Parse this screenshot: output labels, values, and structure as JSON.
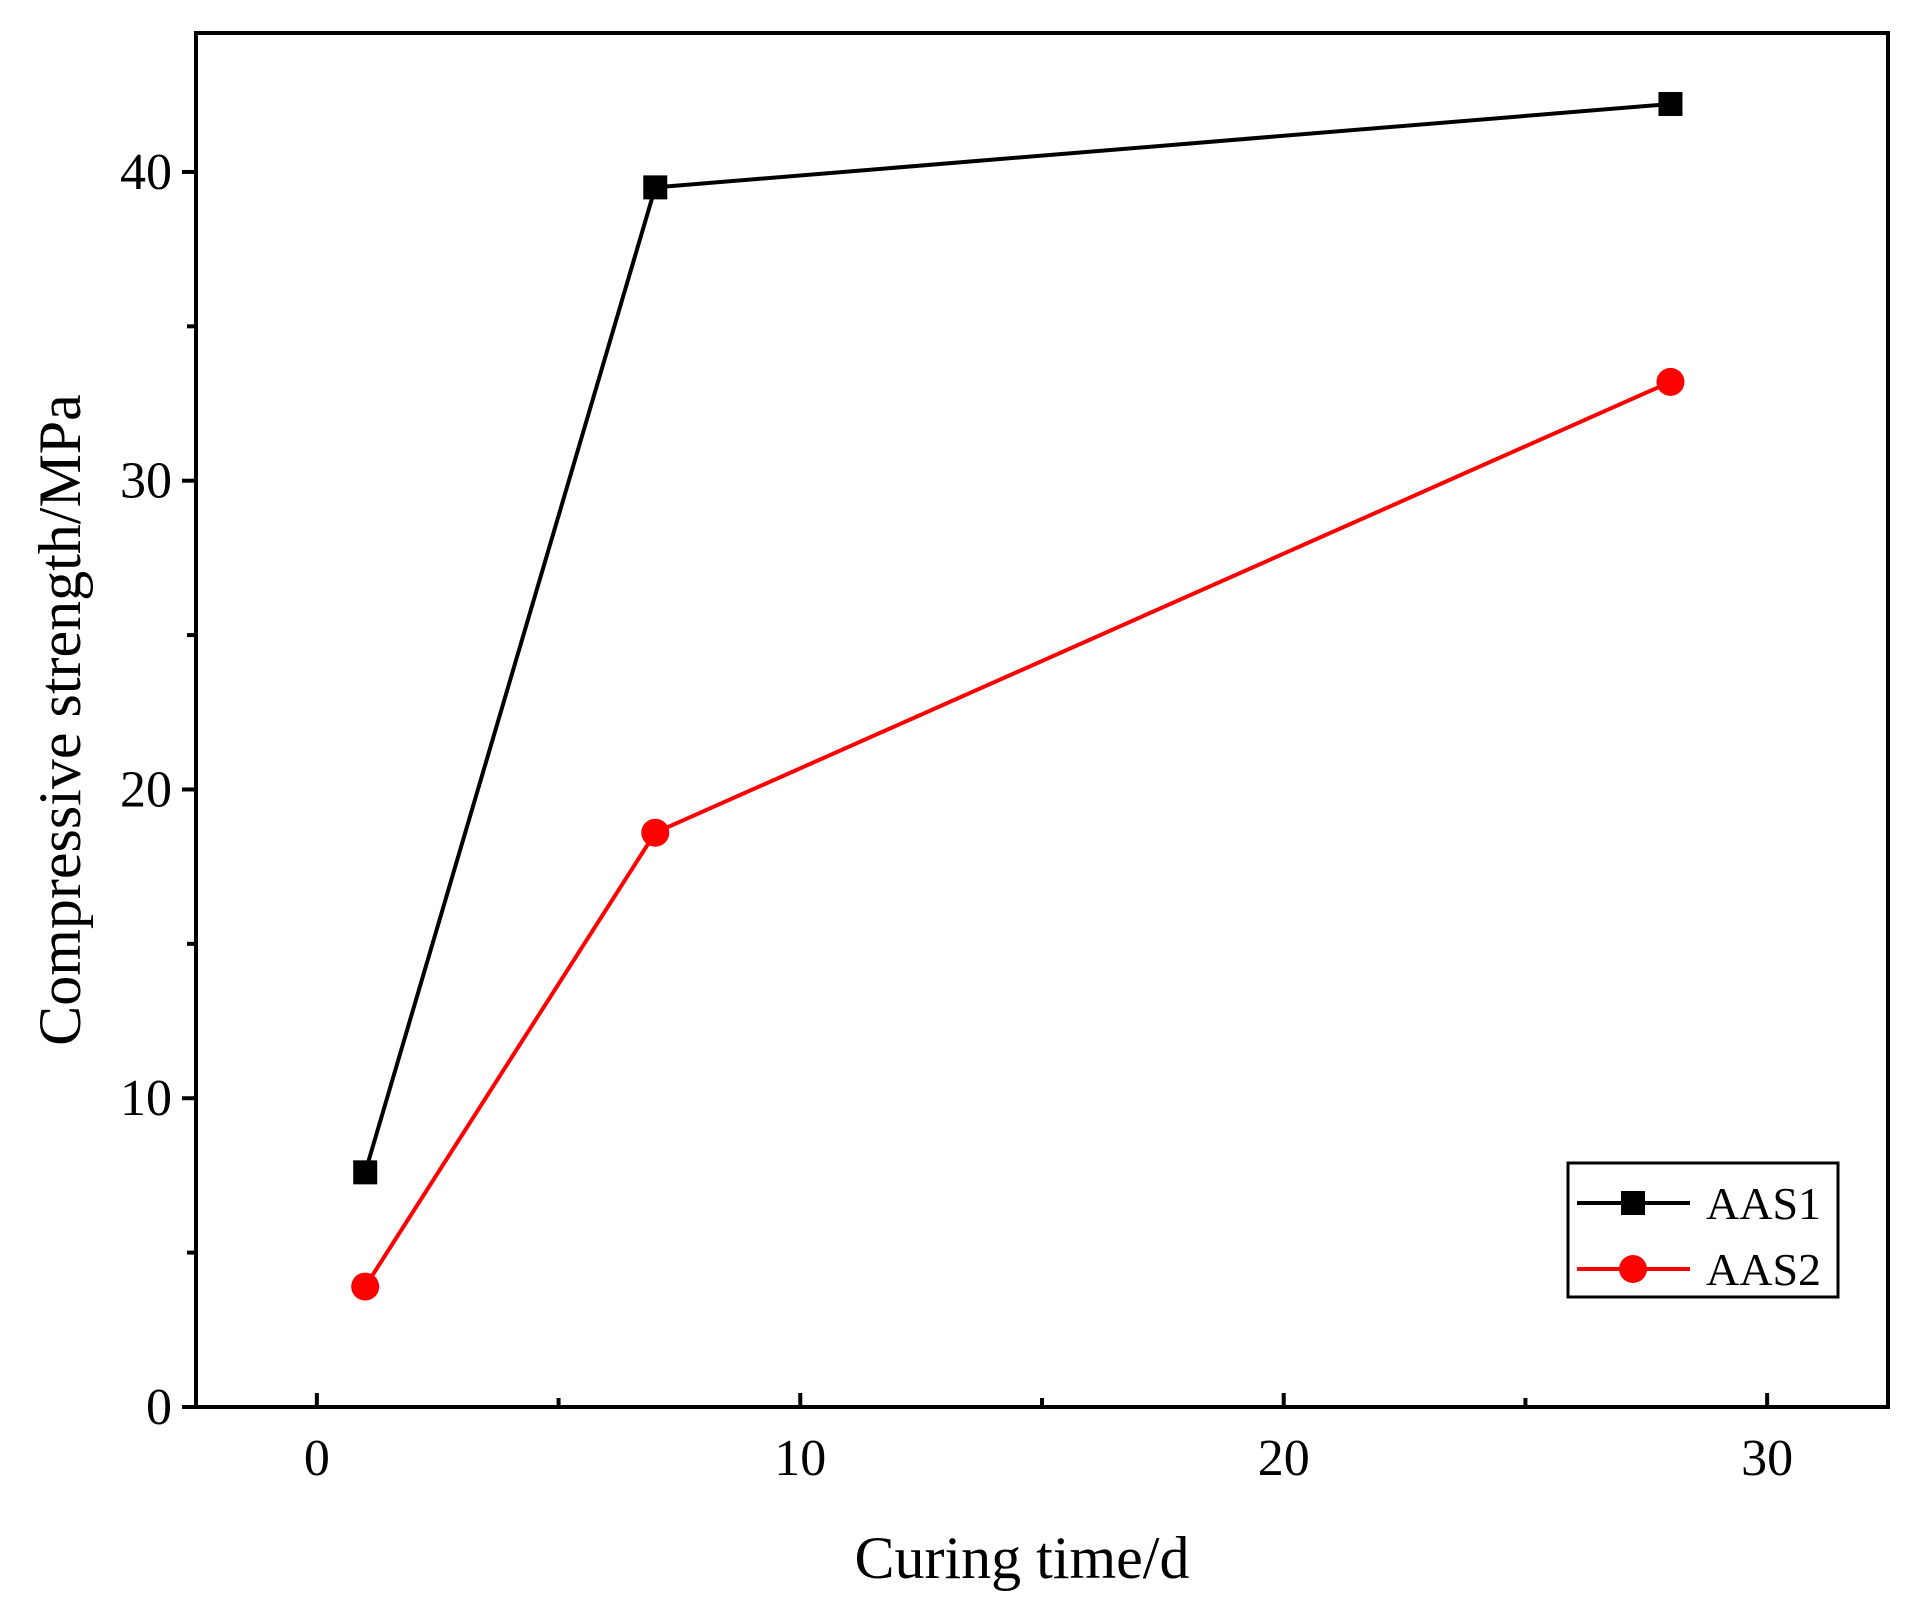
{
  "chart_data": {
    "type": "line",
    "title": "",
    "xlabel": "Curing time/d",
    "ylabel": "Compressive strength/MPa",
    "xlim": [
      -2.5,
      32.5
    ],
    "ylim": [
      0,
      44.5
    ],
    "x_major_ticks": [
      0,
      10,
      20,
      30
    ],
    "x_minor_ticks": [
      5,
      15,
      25
    ],
    "y_major_ticks": [
      0,
      10,
      20,
      30,
      40
    ],
    "y_minor_ticks": [
      5,
      15,
      25,
      35
    ],
    "x_tick_labels": [
      "0",
      "10",
      "20",
      "30"
    ],
    "y_tick_labels": [
      "0",
      "10",
      "20",
      "30",
      "40"
    ],
    "grid": false,
    "legend_position": "bottom-right",
    "series": [
      {
        "name": "AAS1",
        "color": "#000000",
        "marker": "square",
        "x": [
          1,
          7,
          28
        ],
        "y": [
          7.6,
          39.5,
          42.2
        ]
      },
      {
        "name": "AAS2",
        "color": "#ff0000",
        "marker": "circle",
        "x": [
          1,
          7,
          28
        ],
        "y": [
          3.9,
          18.6,
          33.2
        ]
      }
    ]
  }
}
